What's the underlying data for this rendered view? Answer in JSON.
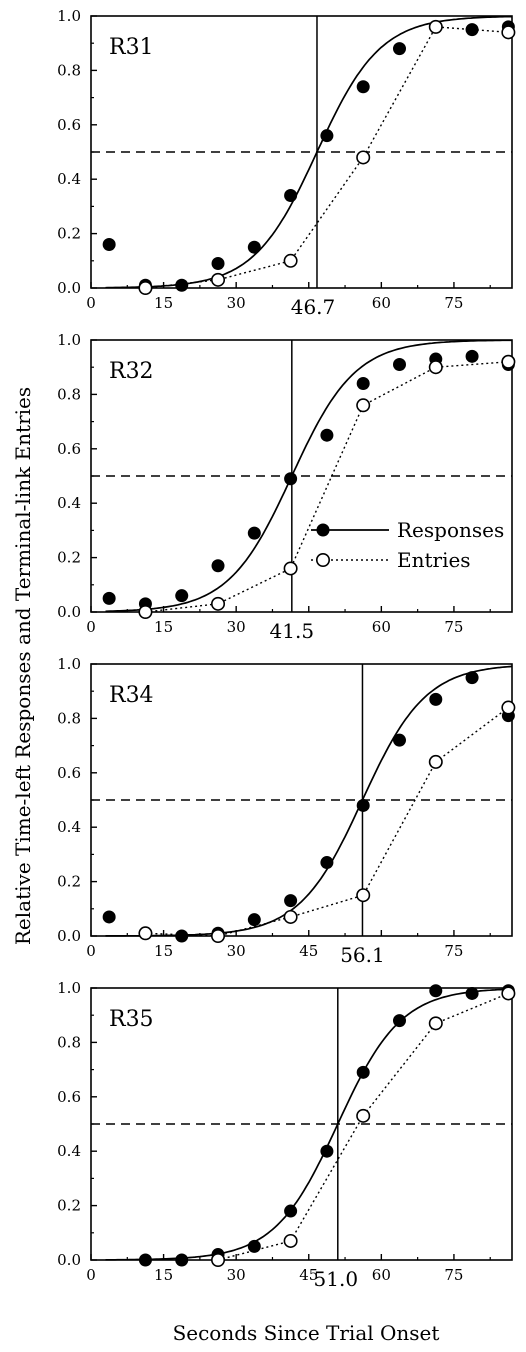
{
  "figure": {
    "xlabel": "Seconds Since Trial Onset",
    "ylabel": "Relative Time-left Responses and Terminal-link Entries"
  },
  "legend": {
    "items": [
      {
        "label": "Responses",
        "marker": "filled-circle",
        "line": "solid"
      },
      {
        "label": "Entries",
        "marker": "open-circle",
        "line": "dotted"
      }
    ],
    "panel": "R32"
  },
  "chart_data": [
    {
      "type": "line",
      "panel_label": "R31",
      "x_ticks": [
        "0",
        "15",
        "30",
        "45",
        "60",
        "75"
      ],
      "y_ticks": [
        "0.0",
        "0.2",
        "0.4",
        "0.6",
        "0.8",
        "1.0"
      ],
      "xlim": [
        0,
        87
      ],
      "ylim": [
        0,
        1
      ],
      "indifference_point": {
        "x": 46.7,
        "label": "46.7"
      },
      "reference_line_y": 0.5,
      "series": [
        {
          "name": "Responses",
          "points": [
            [
              3.75,
              0.16
            ],
            [
              11.25,
              0.01
            ],
            [
              18.75,
              0.01
            ],
            [
              26.25,
              0.09
            ],
            [
              33.75,
              0.15
            ],
            [
              41.25,
              0.34
            ],
            [
              48.75,
              0.56
            ],
            [
              56.25,
              0.74
            ],
            [
              63.75,
              0.88
            ],
            [
              71.25,
              0.96
            ],
            [
              78.75,
              0.95
            ],
            [
              86.25,
              0.96
            ]
          ]
        },
        {
          "name": "Entries",
          "points": [
            [
              11.25,
              0.0
            ],
            [
              26.25,
              0.03
            ],
            [
              41.25,
              0.1
            ],
            [
              56.25,
              0.48
            ],
            [
              71.25,
              0.96
            ],
            [
              86.25,
              0.94
            ]
          ]
        }
      ]
    },
    {
      "type": "line",
      "panel_label": "R32",
      "x_ticks": [
        "0",
        "15",
        "30",
        "45",
        "60",
        "75"
      ],
      "y_ticks": [
        "0.0",
        "0.2",
        "0.4",
        "0.6",
        "0.8",
        "1.0"
      ],
      "xlim": [
        0,
        87
      ],
      "ylim": [
        0,
        1
      ],
      "indifference_point": {
        "x": 41.5,
        "label": "41.5"
      },
      "reference_line_y": 0.5,
      "series": [
        {
          "name": "Responses",
          "points": [
            [
              3.75,
              0.05
            ],
            [
              11.25,
              0.03
            ],
            [
              18.75,
              0.06
            ],
            [
              26.25,
              0.17
            ],
            [
              33.75,
              0.29
            ],
            [
              41.25,
              0.49
            ],
            [
              48.75,
              0.65
            ],
            [
              56.25,
              0.84
            ],
            [
              63.75,
              0.91
            ],
            [
              71.25,
              0.93
            ],
            [
              78.75,
              0.94
            ],
            [
              86.25,
              0.91
            ]
          ]
        },
        {
          "name": "Entries",
          "points": [
            [
              11.25,
              0.0
            ],
            [
              26.25,
              0.03
            ],
            [
              41.25,
              0.16
            ],
            [
              56.25,
              0.76
            ],
            [
              71.25,
              0.9
            ],
            [
              86.25,
              0.92
            ]
          ]
        }
      ]
    },
    {
      "type": "line",
      "panel_label": "R34",
      "x_ticks": [
        "0",
        "15",
        "30",
        "45",
        "60",
        "75"
      ],
      "y_ticks": [
        "0.0",
        "0.2",
        "0.4",
        "0.6",
        "0.8",
        "1.0"
      ],
      "xlim": [
        0,
        87
      ],
      "ylim": [
        0,
        1
      ],
      "indifference_point": {
        "x": 56.1,
        "label": "56.1"
      },
      "reference_line_y": 0.5,
      "series": [
        {
          "name": "Responses",
          "points": [
            [
              3.75,
              0.07
            ],
            [
              11.25,
              0.01
            ],
            [
              18.75,
              0.0
            ],
            [
              26.25,
              0.01
            ],
            [
              33.75,
              0.06
            ],
            [
              41.25,
              0.13
            ],
            [
              48.75,
              0.27
            ],
            [
              56.25,
              0.48
            ],
            [
              63.75,
              0.72
            ],
            [
              71.25,
              0.87
            ],
            [
              78.75,
              0.95
            ],
            [
              86.25,
              0.81
            ]
          ]
        },
        {
          "name": "Entries",
          "points": [
            [
              11.25,
              0.01
            ],
            [
              26.25,
              0.0
            ],
            [
              41.25,
              0.07
            ],
            [
              56.25,
              0.15
            ],
            [
              71.25,
              0.64
            ],
            [
              86.25,
              0.84
            ]
          ]
        }
      ]
    },
    {
      "type": "line",
      "panel_label": "R35",
      "x_ticks": [
        "0",
        "15",
        "30",
        "45",
        "60",
        "75"
      ],
      "y_ticks": [
        "0.0",
        "0.2",
        "0.4",
        "0.6",
        "0.8",
        "1.0"
      ],
      "xlim": [
        0,
        87
      ],
      "ylim": [
        0,
        1
      ],
      "indifference_point": {
        "x": 51.0,
        "label": "51.0"
      },
      "reference_line_y": 0.5,
      "series": [
        {
          "name": "Responses",
          "points": [
            [
              11.25,
              0.0
            ],
            [
              18.75,
              0.0
            ],
            [
              26.25,
              0.02
            ],
            [
              33.75,
              0.05
            ],
            [
              41.25,
              0.18
            ],
            [
              48.75,
              0.4
            ],
            [
              56.25,
              0.69
            ],
            [
              63.75,
              0.88
            ],
            [
              71.25,
              0.99
            ],
            [
              78.75,
              0.98
            ],
            [
              86.25,
              0.99
            ]
          ]
        },
        {
          "name": "Entries",
          "points": [
            [
              26.25,
              0.0
            ],
            [
              41.25,
              0.07
            ],
            [
              56.25,
              0.53
            ],
            [
              71.25,
              0.87
            ],
            [
              86.25,
              0.98
            ]
          ]
        }
      ]
    }
  ]
}
